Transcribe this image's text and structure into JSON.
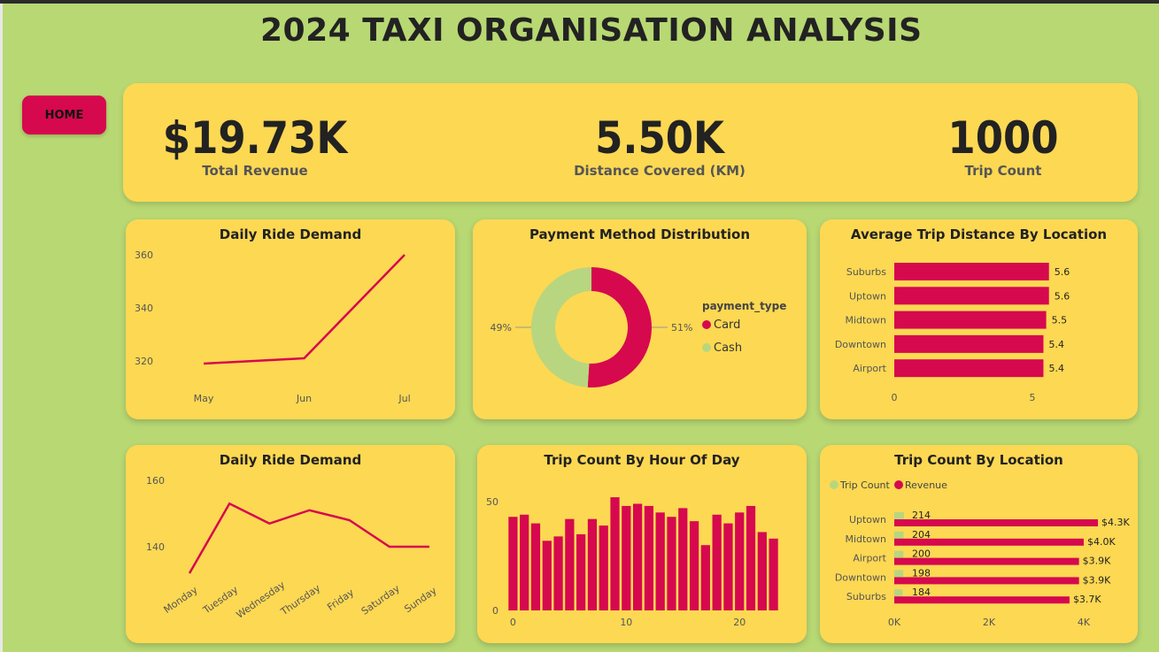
{
  "page_title": "2024 TAXI ORGANISATION ANALYSIS",
  "nav": {
    "home_label": "HOME"
  },
  "colors": {
    "background": "#b8d873",
    "panel": "#fdd853",
    "accent": "#d6084e",
    "secondary": "#b8d67f",
    "text": "#222222"
  },
  "kpis": {
    "revenue": {
      "value": "$19.73K",
      "label": "Total Revenue"
    },
    "distance": {
      "value": "5.50K",
      "label": "Distance Covered (KM)"
    },
    "trips": {
      "value": "1000",
      "label": "Trip Count"
    }
  },
  "chart_data": [
    {
      "id": "daily_monthly",
      "type": "line",
      "title": "Daily Ride Demand",
      "x": [
        "May",
        "Jun",
        "Jul"
      ],
      "values": [
        319,
        321,
        360
      ],
      "yticks": [
        320,
        340,
        360
      ],
      "ylim": [
        310,
        365
      ],
      "grid": false
    },
    {
      "id": "payment",
      "type": "pie",
      "donut": true,
      "title": "Payment Method Distribution",
      "legend_title": "payment_type",
      "legend_position": "right",
      "slices": [
        {
          "name": "Card",
          "value": 51,
          "label": "51%",
          "color": "#d6084e"
        },
        {
          "name": "Cash",
          "value": 49,
          "label": "49%",
          "color": "#b8d67f"
        }
      ]
    },
    {
      "id": "avg_distance",
      "type": "bar",
      "orientation": "horizontal",
      "title": "Average Trip Distance By Location",
      "categories": [
        "Suburbs",
        "Uptown",
        "Midtown",
        "Downtown",
        "Airport"
      ],
      "values": [
        5.6,
        5.6,
        5.5,
        5.4,
        5.4
      ],
      "data_labels": [
        "5.6",
        "5.6",
        "5.5",
        "5.4",
        "5.4"
      ],
      "xticks": [
        0,
        5
      ],
      "xlim": [
        0,
        6.3
      ]
    },
    {
      "id": "daily_weekday",
      "type": "line",
      "title": "Daily Ride Demand",
      "x": [
        "Monday",
        "Tuesday",
        "Wednesday",
        "Thursday",
        "Friday",
        "Saturday",
        "Sunday"
      ],
      "values": [
        132,
        153,
        147,
        151,
        148,
        140,
        140
      ],
      "yticks": [
        140,
        160
      ],
      "ylim": [
        132,
        160
      ],
      "grid": false
    },
    {
      "id": "hourly",
      "type": "bar",
      "title": "Trip Count By Hour Of Day",
      "x": [
        0,
        1,
        2,
        3,
        4,
        5,
        6,
        7,
        8,
        9,
        10,
        11,
        12,
        13,
        14,
        15,
        16,
        17,
        18,
        19,
        20,
        21,
        22,
        23
      ],
      "values": [
        43,
        44,
        40,
        32,
        34,
        42,
        35,
        42,
        39,
        52,
        48,
        49,
        48,
        45,
        43,
        47,
        41,
        30,
        44,
        40,
        45,
        48,
        36,
        33
      ],
      "xticks": [
        0,
        10,
        20
      ],
      "yticks": [
        0,
        50
      ],
      "ylim": [
        0,
        55
      ]
    },
    {
      "id": "location_counts",
      "type": "bar",
      "orientation": "horizontal",
      "title": "Trip Count By Location",
      "categories": [
        "Uptown",
        "Midtown",
        "Airport",
        "Downtown",
        "Suburbs"
      ],
      "series": [
        {
          "name": "Trip Count",
          "values": [
            214,
            204,
            200,
            198,
            184
          ],
          "labels": [
            "214",
            "204",
            "200",
            "198",
            "184"
          ],
          "color": "#b8d67f"
        },
        {
          "name": "Revenue",
          "values": [
            4300,
            4000,
            3900,
            3900,
            3700
          ],
          "labels": [
            "$4.3K",
            "$4.0K",
            "$3.9K",
            "$3.9K",
            "$3.7K"
          ],
          "color": "#d6084e"
        }
      ],
      "xticks": [
        "0K",
        "2K",
        "4K"
      ],
      "xlim": [
        0,
        4500
      ],
      "legend_position": "top-left"
    }
  ]
}
